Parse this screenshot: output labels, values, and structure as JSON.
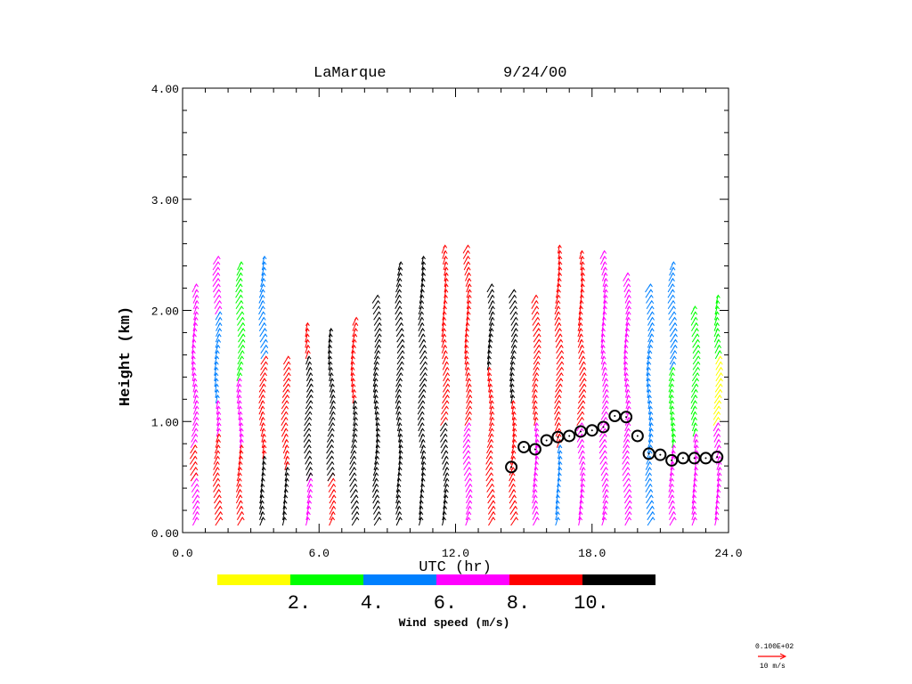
{
  "chart_data": {
    "type": "scatter",
    "title": "LaMarque",
    "date": "9/24/00",
    "xlabel": "UTC (hr)",
    "ylabel": "Height (km)",
    "xlim": [
      0,
      24
    ],
    "ylim": [
      0,
      4
    ],
    "xticks": [
      "0.0",
      "6.0",
      "12.0",
      "18.0",
      "24.0"
    ],
    "yticks": [
      "0.00",
      "1.00",
      "2.00",
      "3.00",
      "4.00"
    ],
    "colorbar": {
      "label": "Wind speed (m/s)",
      "colors": [
        "#ffff00",
        "#00ff00",
        "#0080ff",
        "#ff00ff",
        "#ff0000",
        "#000000"
      ],
      "tick_labels": [
        "2.",
        "4.",
        "6.",
        "8.",
        "10."
      ]
    },
    "reference_vector": {
      "value": "0.100E+02",
      "label": "10 m/s",
      "color": "#ff0000"
    },
    "wind_profiles": [
      {
        "t": 0.5,
        "top": 2.2,
        "bands": [
          [
            0.1,
            0.5,
            "#ff00ff"
          ],
          [
            0.5,
            0.8,
            "#ff0000"
          ],
          [
            0.8,
            2.2,
            "#ff00ff"
          ]
        ]
      },
      {
        "t": 1.5,
        "top": 2.45,
        "bands": [
          [
            0.1,
            0.9,
            "#ff0000"
          ],
          [
            0.9,
            1.2,
            "#ff00ff"
          ],
          [
            1.2,
            2.0,
            "#0080ff"
          ],
          [
            2.0,
            2.45,
            "#ff00ff"
          ]
        ]
      },
      {
        "t": 2.5,
        "top": 2.4,
        "bands": [
          [
            0.1,
            0.8,
            "#ff0000"
          ],
          [
            0.8,
            1.4,
            "#ff00ff"
          ],
          [
            1.4,
            2.4,
            "#00ff00"
          ]
        ]
      },
      {
        "t": 3.5,
        "top": 2.45,
        "bands": [
          [
            0.1,
            0.7,
            "#000000"
          ],
          [
            0.7,
            1.6,
            "#ff0000"
          ],
          [
            1.6,
            2.45,
            "#0080ff"
          ]
        ]
      },
      {
        "t": 4.5,
        "top": 1.6,
        "bands": [
          [
            0.1,
            0.6,
            "#000000"
          ],
          [
            0.6,
            1.6,
            "#ff0000"
          ]
        ]
      },
      {
        "t": 5.5,
        "top": 1.9,
        "bands": [
          [
            0.1,
            0.5,
            "#ff00ff"
          ],
          [
            0.5,
            1.6,
            "#000000"
          ],
          [
            1.6,
            1.9,
            "#ff0000"
          ]
        ]
      },
      {
        "t": 6.5,
        "top": 1.85,
        "bands": [
          [
            0.1,
            0.5,
            "#ff0000"
          ],
          [
            0.5,
            1.85,
            "#000000"
          ]
        ]
      },
      {
        "t": 7.5,
        "top": 1.95,
        "bands": [
          [
            0.1,
            1.2,
            "#000000"
          ],
          [
            1.2,
            1.95,
            "#ff0000"
          ]
        ]
      },
      {
        "t": 8.5,
        "top": 2.15,
        "bands": [
          [
            0.1,
            2.15,
            "#000000"
          ]
        ]
      },
      {
        "t": 9.5,
        "top": 2.4,
        "bands": [
          [
            0.1,
            2.4,
            "#000000"
          ]
        ]
      },
      {
        "t": 10.5,
        "top": 2.45,
        "bands": [
          [
            0.1,
            2.45,
            "#000000"
          ]
        ]
      },
      {
        "t": 11.5,
        "top": 2.55,
        "bands": [
          [
            0.1,
            1.0,
            "#000000"
          ],
          [
            1.0,
            2.55,
            "#ff0000"
          ]
        ]
      },
      {
        "t": 12.5,
        "top": 2.55,
        "bands": [
          [
            0.1,
            1.0,
            "#ff00ff"
          ],
          [
            1.0,
            2.55,
            "#ff0000"
          ]
        ]
      },
      {
        "t": 13.5,
        "top": 2.2,
        "bands": [
          [
            0.1,
            1.5,
            "#ff0000"
          ],
          [
            1.5,
            2.2,
            "#000000"
          ]
        ]
      },
      {
        "t": 14.5,
        "top": 2.15,
        "bands": [
          [
            0.1,
            1.2,
            "#ff0000"
          ],
          [
            1.2,
            2.15,
            "#000000"
          ]
        ]
      },
      {
        "t": 15.5,
        "top": 2.15,
        "bands": [
          [
            0.1,
            1.0,
            "#ff00ff"
          ],
          [
            1.0,
            2.15,
            "#ff0000"
          ]
        ]
      },
      {
        "t": 16.5,
        "top": 2.55,
        "bands": [
          [
            0.1,
            0.8,
            "#0080ff"
          ],
          [
            0.8,
            2.55,
            "#ff0000"
          ]
        ]
      },
      {
        "t": 17.5,
        "top": 2.5,
        "bands": [
          [
            0.1,
            1.0,
            "#ff00ff"
          ],
          [
            1.0,
            2.5,
            "#ff0000"
          ]
        ]
      },
      {
        "t": 18.5,
        "top": 2.5,
        "bands": [
          [
            0.1,
            2.5,
            "#ff00ff"
          ]
        ]
      },
      {
        "t": 19.5,
        "top": 2.3,
        "bands": [
          [
            0.1,
            2.3,
            "#ff00ff"
          ]
        ]
      },
      {
        "t": 20.5,
        "top": 2.2,
        "bands": [
          [
            0.1,
            2.2,
            "#0080ff"
          ]
        ]
      },
      {
        "t": 21.5,
        "top": 2.4,
        "bands": [
          [
            0.1,
            0.8,
            "#ff00ff"
          ],
          [
            0.8,
            1.5,
            "#00ff00"
          ],
          [
            1.5,
            2.4,
            "#0080ff"
          ]
        ]
      },
      {
        "t": 22.5,
        "top": 2.05,
        "bands": [
          [
            0.1,
            0.9,
            "#ff00ff"
          ],
          [
            0.9,
            2.05,
            "#00ff00"
          ]
        ]
      },
      {
        "t": 23.5,
        "top": 2.1,
        "bands": [
          [
            0.1,
            1.0,
            "#ff00ff"
          ],
          [
            1.0,
            1.6,
            "#ffff00"
          ],
          [
            1.6,
            2.1,
            "#00ff00"
          ]
        ]
      }
    ],
    "boundary_layer_height": {
      "t": [
        14.45,
        15.0,
        15.5,
        16.0,
        16.5,
        17.0,
        17.5,
        18.0,
        18.5,
        19.0,
        19.5,
        20.0,
        20.5,
        21.0,
        21.5,
        22.0,
        22.5,
        23.0,
        23.5
      ],
      "h": [
        0.59,
        0.77,
        0.75,
        0.83,
        0.86,
        0.87,
        0.91,
        0.92,
        0.95,
        1.05,
        1.04,
        0.87,
        0.71,
        0.7,
        0.65,
        0.67,
        0.67,
        0.67,
        0.68
      ]
    }
  }
}
